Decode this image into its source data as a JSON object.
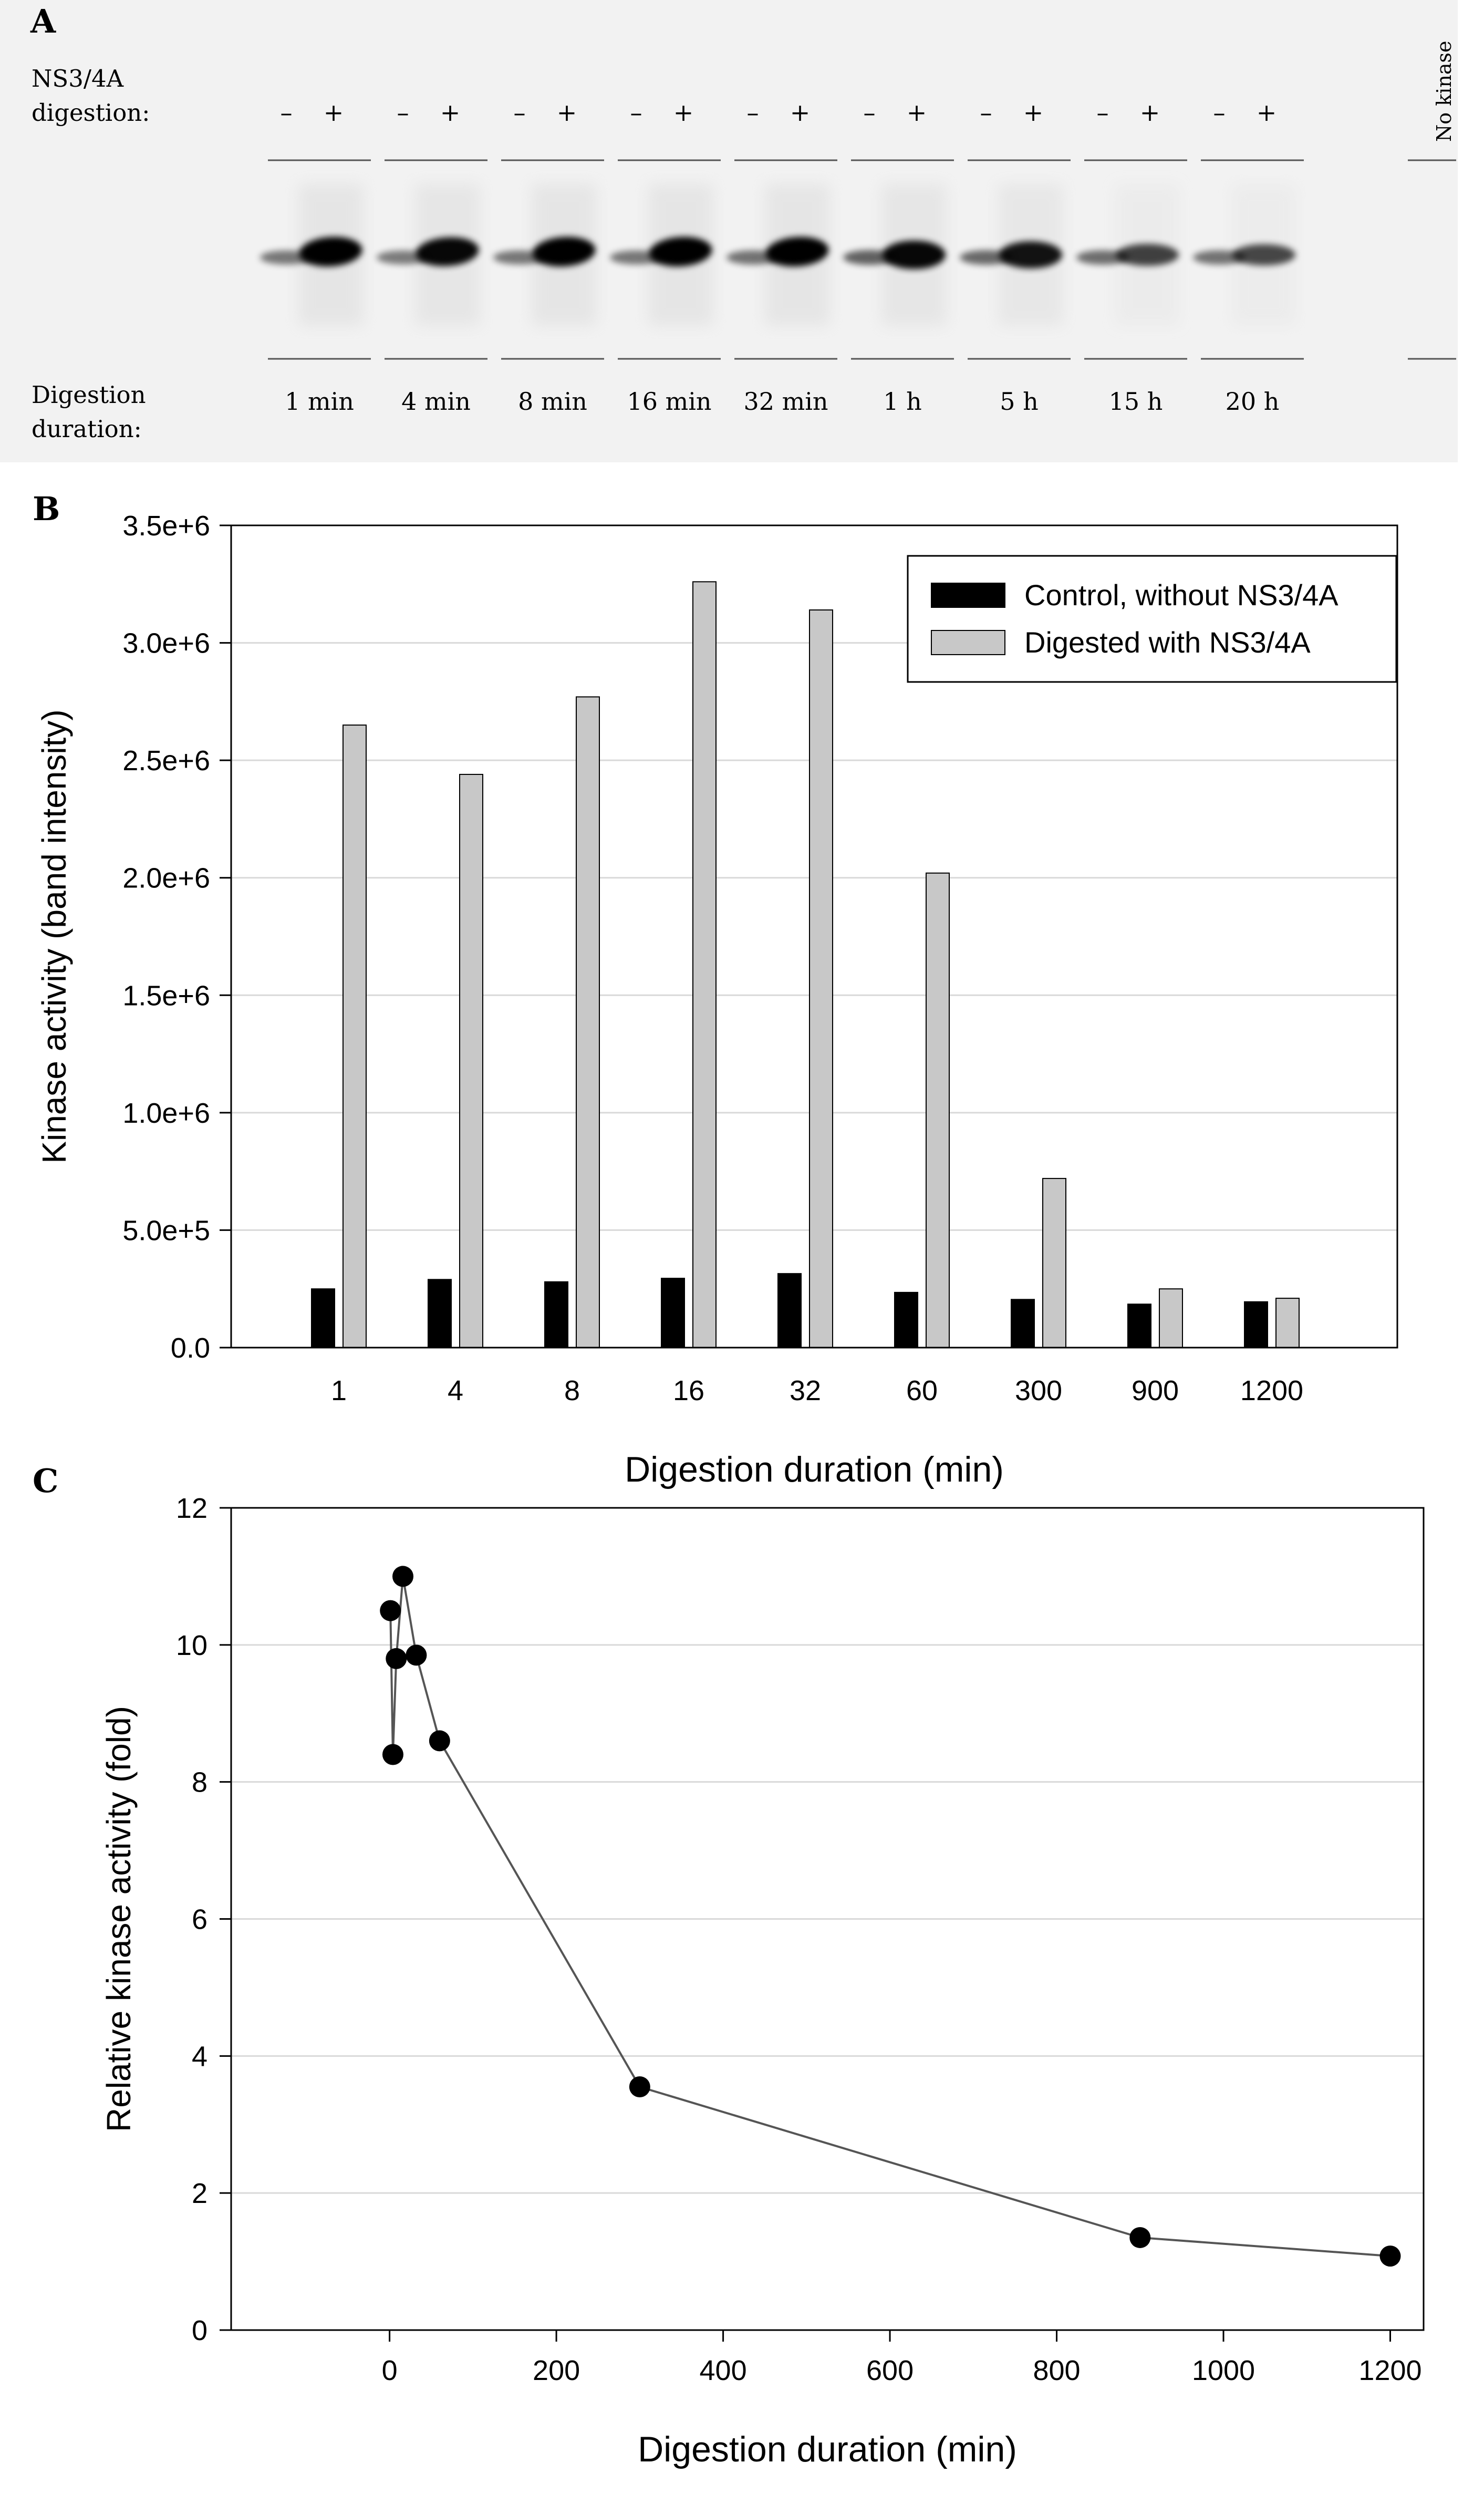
{
  "panel_a": {
    "label": "A",
    "row1_label_line1": "NS3/4A",
    "row1_label_line2": "digestion:",
    "minus": "–",
    "plus": "+",
    "row2_label_line1": "Digestion",
    "row2_label_line2": "duration:",
    "durations": [
      "1 min",
      "4 min",
      "8 min",
      "16 min",
      "32 min",
      "1 h",
      "5 h",
      "15 h",
      "20 h"
    ],
    "no_kinase": "No kinase",
    "band_intensity": {
      "without_ns34a": [
        0.35,
        0.32,
        0.35,
        0.35,
        0.4,
        0.55,
        0.5,
        0.45,
        0.4
      ],
      "with_ns34a": [
        1.0,
        0.95,
        1.0,
        1.0,
        1.0,
        0.95,
        0.85,
        0.5,
        0.45
      ]
    }
  },
  "panel_b": {
    "label": "B",
    "colors": {
      "control": "#000000",
      "digested": "#c8c8c8",
      "grid": "#d9d9d9"
    }
  },
  "panel_c": {
    "label": "C",
    "colors": {
      "line": "#555555",
      "marker": "#000000",
      "grid": "#d9d9d9"
    }
  },
  "chart_data": [
    {
      "type": "bar",
      "title": "",
      "xlabel": "Digestion duration (min)",
      "ylabel": "Kinase activity (band intensity)",
      "categories": [
        "1",
        "4",
        "8",
        "16",
        "32",
        "60",
        "300",
        "900",
        "1200"
      ],
      "series": [
        {
          "name": "Control, without NS3/4A",
          "values": [
            250000,
            290000,
            280000,
            295000,
            315000,
            235000,
            205000,
            185000,
            195000
          ]
        },
        {
          "name": "Digested with NS3/4A",
          "values": [
            2650000,
            2440000,
            2770000,
            3260000,
            3140000,
            2020000,
            720000,
            250000,
            210000
          ]
        }
      ],
      "ylim": [
        0,
        3500000
      ],
      "yticks": [
        0,
        500000,
        1000000,
        1500000,
        2000000,
        2500000,
        3000000,
        3500000
      ],
      "ytick_labels": [
        "0.0",
        "5.0e+5",
        "1.0e+6",
        "1.5e+6",
        "2.0e+6",
        "2.5e+6",
        "3.0e+6",
        "3.5e+6"
      ],
      "grid": true,
      "legend": "top-right"
    },
    {
      "type": "line",
      "title": "",
      "xlabel": "Digestion duration (min)",
      "ylabel": "Relative kinase activity (fold)",
      "x": [
        1,
        4,
        8,
        16,
        32,
        60,
        300,
        900,
        1200
      ],
      "y": [
        10.5,
        8.4,
        9.8,
        11.0,
        9.85,
        8.6,
        3.55,
        1.35,
        1.08
      ],
      "xlim": [
        -190,
        1240
      ],
      "ylim": [
        0,
        12
      ],
      "xticks": [
        0,
        200,
        400,
        600,
        800,
        1000,
        1200
      ],
      "yticks": [
        0,
        2,
        4,
        6,
        8,
        10,
        12
      ],
      "grid": true,
      "markers": "filled circles"
    }
  ]
}
